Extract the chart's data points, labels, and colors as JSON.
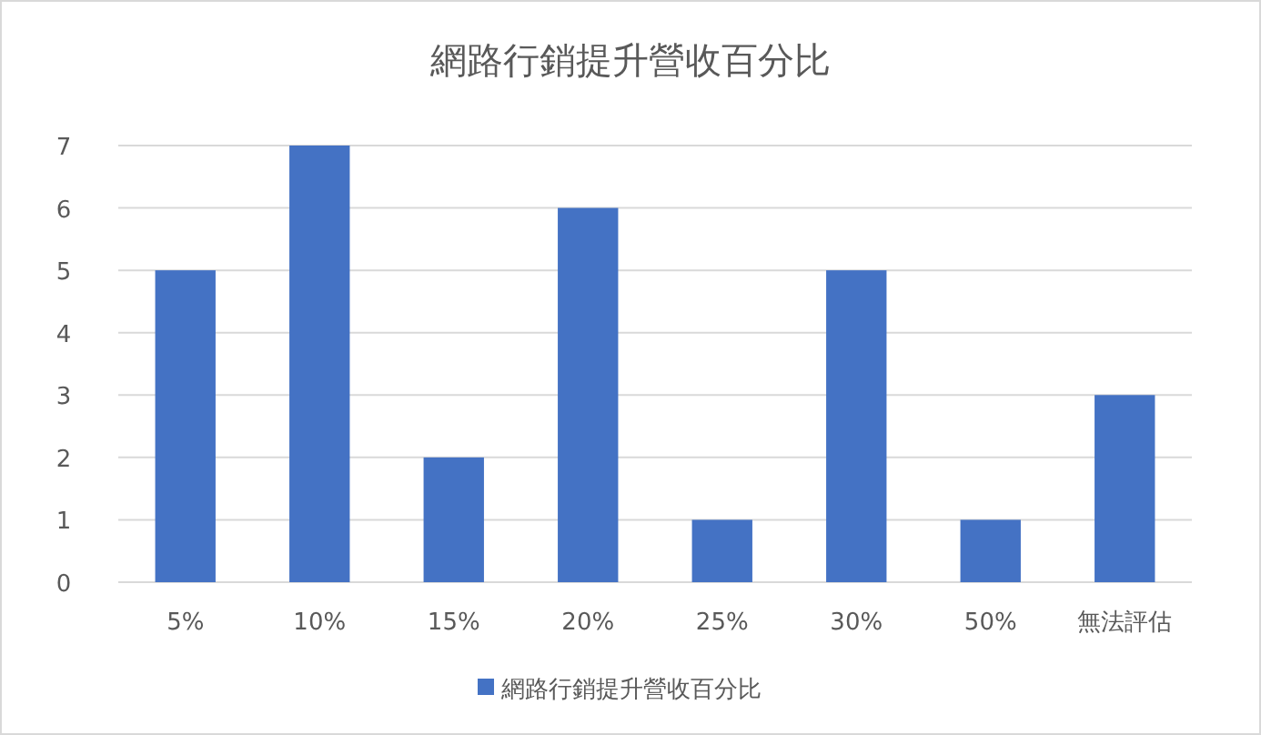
{
  "chart_data": {
    "type": "bar",
    "title": "網路行銷提升營收百分比",
    "categories": [
      "5%",
      "10%",
      "15%",
      "20%",
      "25%",
      "30%",
      "50%",
      "無法評估"
    ],
    "series": [
      {
        "name": "網路行銷提升營收百分比",
        "color": "#4472c4",
        "values": [
          5,
          7,
          2,
          6,
          1,
          5,
          1,
          3
        ]
      }
    ],
    "ylim": [
      0,
      7
    ],
    "yticks": [
      0,
      1,
      2,
      3,
      4,
      5,
      6,
      7
    ],
    "grid": "y",
    "legend": "bottom"
  }
}
